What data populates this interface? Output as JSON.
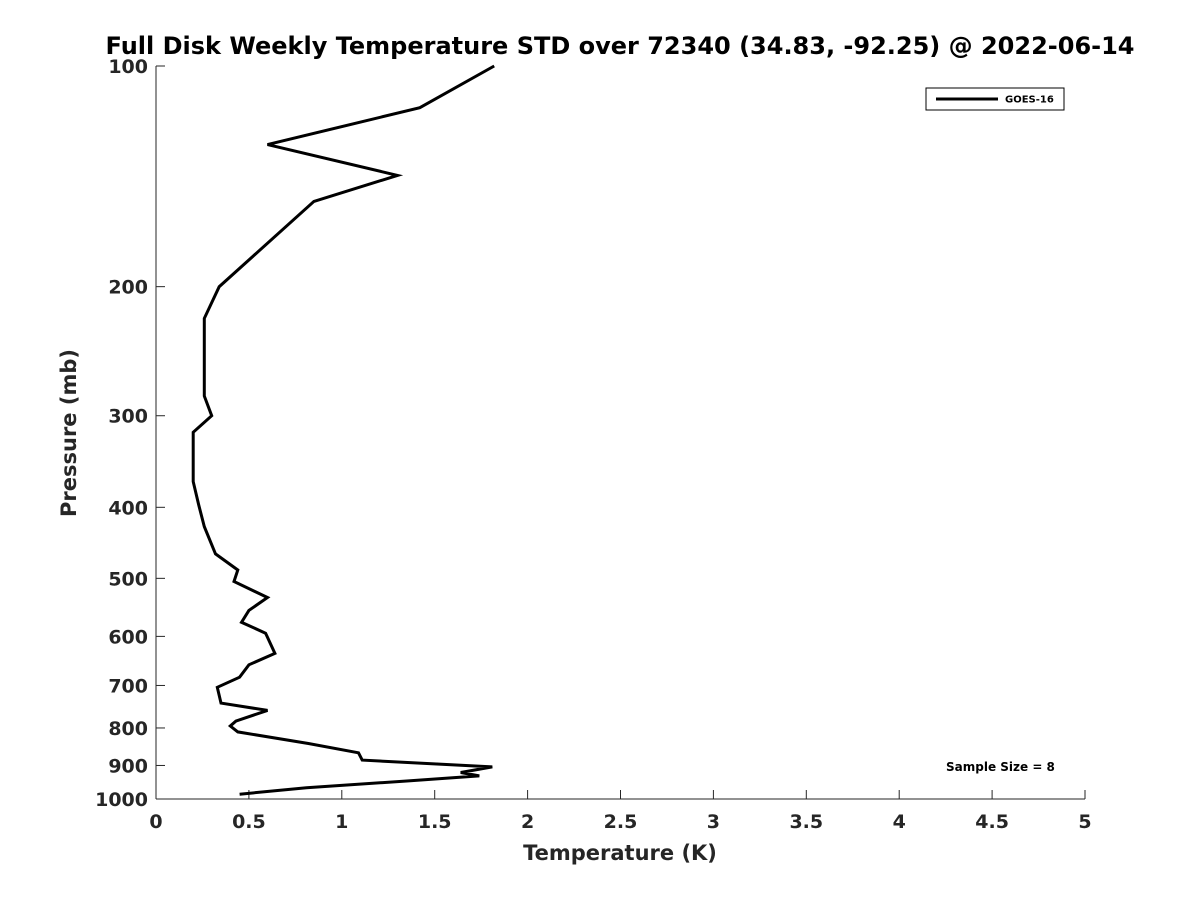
{
  "chart_data": {
    "type": "line",
    "title": "Full Disk Weekly Temperature STD over 72340 (34.83, -92.25) @ 2022-06-14",
    "xlabel": "Temperature (K)",
    "ylabel": "Pressure (mb)",
    "xlim": [
      0,
      5
    ],
    "ylim": [
      1000,
      100
    ],
    "y_scale": "log",
    "x_ticks": [
      0,
      0.5,
      1,
      1.5,
      2,
      2.5,
      3,
      3.5,
      4,
      4.5,
      5
    ],
    "x_tick_labels": [
      "0",
      "0.5",
      "1",
      "1.5",
      "2",
      "2.5",
      "3",
      "3.5",
      "4",
      "4.5",
      "5"
    ],
    "y_ticks": [
      100,
      200,
      300,
      400,
      500,
      600,
      700,
      800,
      900,
      1000
    ],
    "y_tick_labels": [
      "100",
      "200",
      "300",
      "400",
      "500",
      "600",
      "700",
      "800",
      "900",
      "1000"
    ],
    "grid": false,
    "legend_position": "top-right",
    "series": [
      {
        "name": "GOES-16",
        "color": "#000000",
        "points": [
          [
            1.82,
            100
          ],
          [
            1.42,
            114
          ],
          [
            0.6,
            128
          ],
          [
            1.3,
            141
          ],
          [
            0.85,
            153
          ],
          [
            0.34,
            200
          ],
          [
            0.26,
            221
          ],
          [
            0.26,
            244
          ],
          [
            0.26,
            282
          ],
          [
            0.3,
            300
          ],
          [
            0.2,
            316
          ],
          [
            0.2,
            343
          ],
          [
            0.2,
            369
          ],
          [
            0.23,
            397
          ],
          [
            0.26,
            425
          ],
          [
            0.32,
            463
          ],
          [
            0.44,
            487
          ],
          [
            0.42,
            505
          ],
          [
            0.6,
            531
          ],
          [
            0.5,
            553
          ],
          [
            0.46,
            574
          ],
          [
            0.59,
            594
          ],
          [
            0.64,
            633
          ],
          [
            0.5,
            656
          ],
          [
            0.45,
            682
          ],
          [
            0.33,
            704
          ],
          [
            0.35,
            740
          ],
          [
            0.6,
            757
          ],
          [
            0.43,
            783
          ],
          [
            0.4,
            795
          ],
          [
            0.44,
            810
          ],
          [
            0.82,
            840
          ],
          [
            1.09,
            865
          ],
          [
            1.11,
            885
          ],
          [
            1.81,
            904
          ],
          [
            1.64,
            920
          ],
          [
            1.74,
            930
          ],
          [
            1.35,
            945
          ],
          [
            0.81,
            965
          ],
          [
            0.45,
            985
          ]
        ]
      }
    ],
    "annotations": [
      {
        "text": "Sample Size = 8",
        "position": "bottom-right"
      }
    ]
  }
}
